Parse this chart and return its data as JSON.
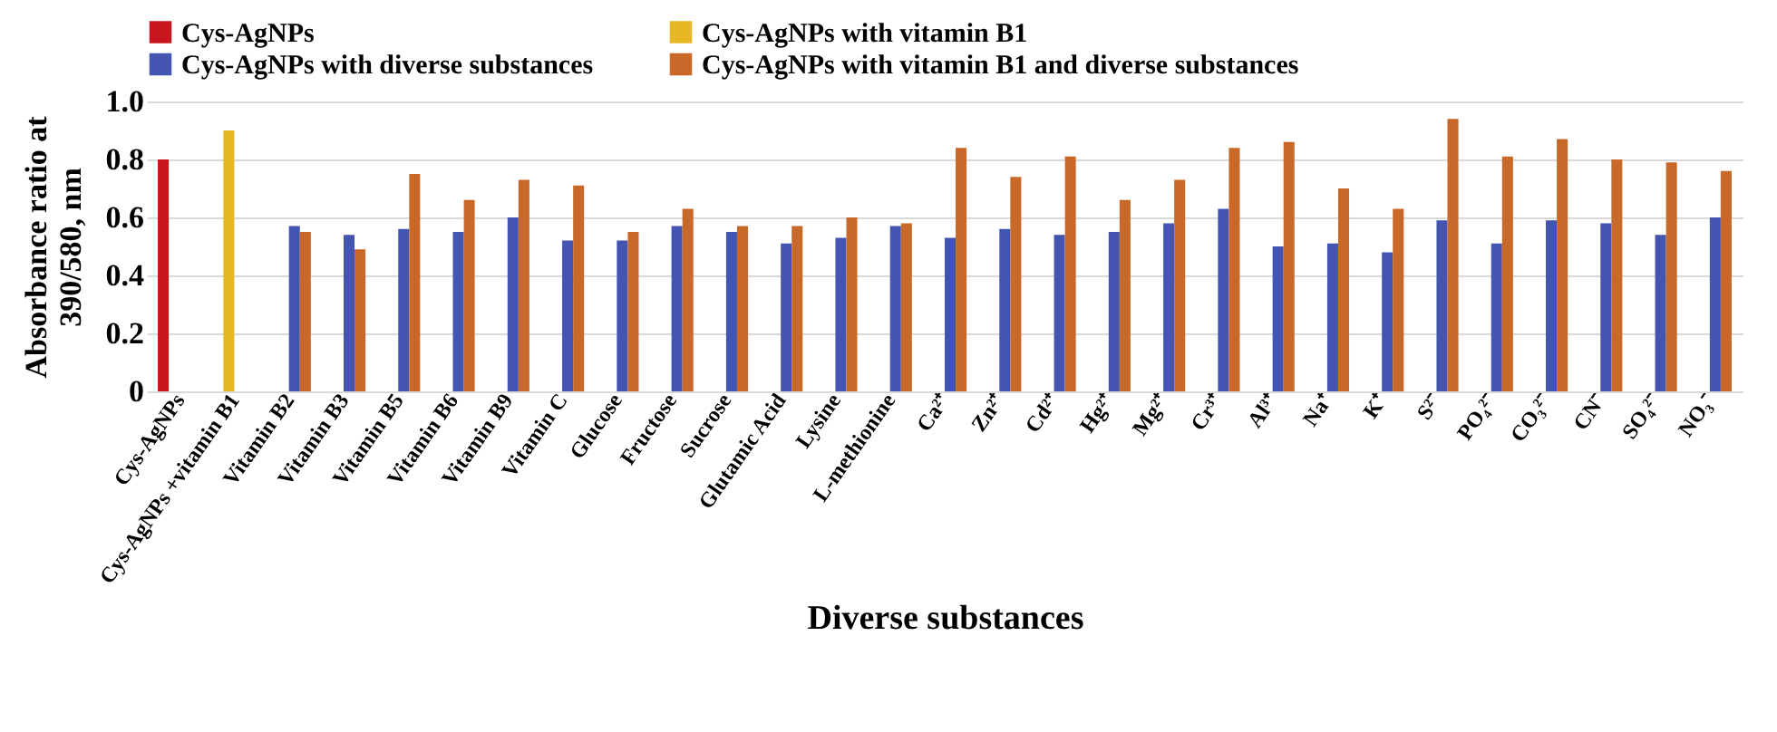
{
  "chart_data": {
    "type": "bar",
    "xlabel": "Diverse substances",
    "ylabel": "Absorbance ratio at 390/580, nm",
    "categories": [
      "Cys-AgNPs",
      "Cys-AgNPs +vitamin B1",
      "Vitamin B2",
      "Vitamin B3",
      "Vitamin B5",
      "Vitamin B6",
      "Vitamin B9",
      "Vitamin C",
      "Glucose",
      "Fructose",
      "Sucrose",
      "Glutamic Acid",
      "Lysine",
      "L-methionine",
      "Ca²⁺",
      "Zn²⁺",
      "Cd²⁺",
      "Hg²⁺",
      "Mg²⁺",
      "Cr³⁺",
      "Al³⁺",
      "Na⁺",
      "K⁺",
      "S²⁻",
      "PO₄²⁻",
      "CO₃²⁻",
      "CN⁻",
      "SO₄²⁻",
      "NO₃⁻"
    ],
    "series": [
      {
        "name": "Cys-AgNPs",
        "color": "#c8161d",
        "values": [
          0.8,
          null,
          null,
          null,
          null,
          null,
          null,
          null,
          null,
          null,
          null,
          null,
          null,
          null,
          null,
          null,
          null,
          null,
          null,
          null,
          null,
          null,
          null,
          null,
          null,
          null,
          null,
          null,
          null
        ]
      },
      {
        "name": "Cys-AgNPs with vitamin B1",
        "color": "#e6b824",
        "values": [
          null,
          0.9,
          null,
          null,
          null,
          null,
          null,
          null,
          null,
          null,
          null,
          null,
          null,
          null,
          null,
          null,
          null,
          null,
          null,
          null,
          null,
          null,
          null,
          null,
          null,
          null,
          null,
          null,
          null
        ]
      },
      {
        "name": "Cys-AgNPs with diverse substances",
        "color": "#4355b0",
        "values": [
          null,
          null,
          0.57,
          0.54,
          0.56,
          0.55,
          0.6,
          0.52,
          0.52,
          0.57,
          0.55,
          0.51,
          0.53,
          0.57,
          0.53,
          0.56,
          0.54,
          0.55,
          0.58,
          0.63,
          0.5,
          0.51,
          0.48,
          0.59,
          0.51,
          0.59,
          0.58,
          0.54,
          0.6
        ]
      },
      {
        "name": "Cys-AgNPs with vitamin B1 and diverse substances",
        "color": "#c8692a",
        "values": [
          null,
          null,
          0.55,
          0.49,
          0.75,
          0.66,
          0.73,
          0.71,
          0.55,
          0.63,
          0.57,
          0.57,
          0.6,
          0.58,
          0.84,
          0.74,
          0.81,
          0.66,
          0.73,
          0.84,
          0.86,
          0.7,
          0.63,
          0.94,
          0.81,
          0.87,
          0.8,
          0.79,
          0.76
        ]
      }
    ],
    "ylim": [
      0,
      1
    ],
    "yticks": [
      0,
      0.2,
      0.4,
      0.6,
      0.8,
      {
        "value": 1,
        "label": "1.0"
      }
    ],
    "grid": "y",
    "legend": "top"
  }
}
